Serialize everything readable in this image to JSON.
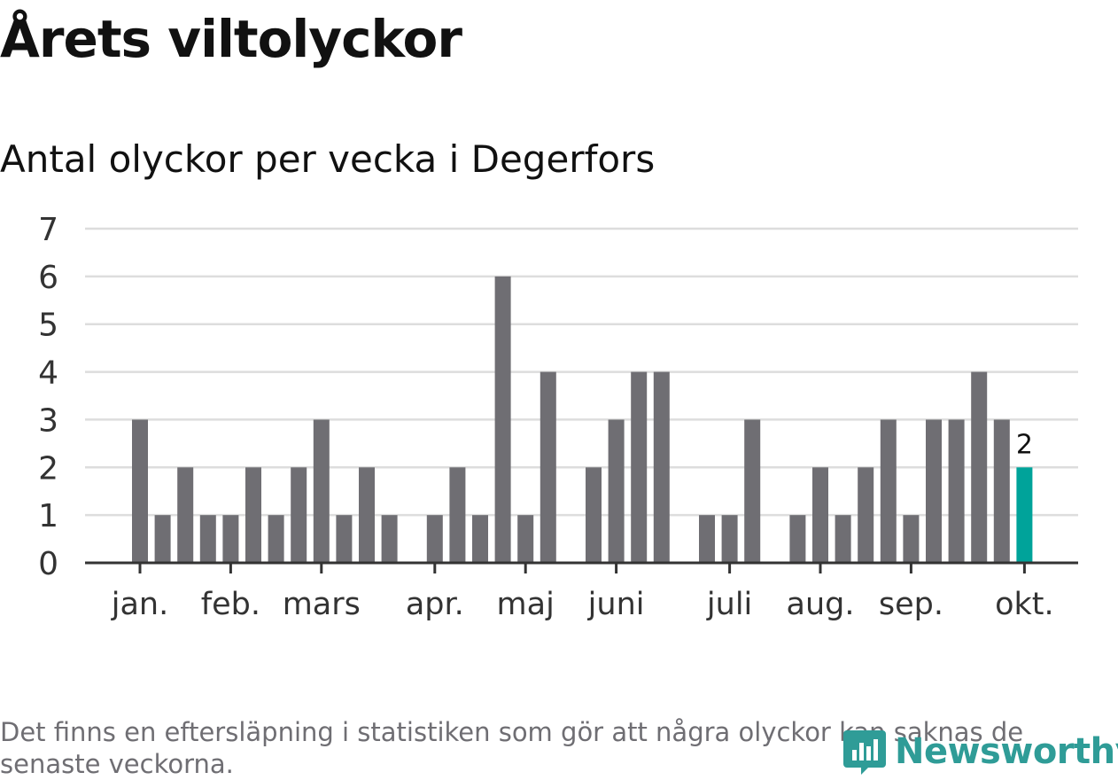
{
  "title": "Årets viltolyckor",
  "subtitle": "Antal olyckor per vecka i Degerfors",
  "note": "Det finns en eftersläpning i statistiken som gör att några olyckor kan saknas de senaste veckorna.",
  "logo": {
    "text": "Newsworthy",
    "icon": "newsworthy-logo-icon",
    "color": "#2f9c97"
  },
  "colors": {
    "bar": "#6f6e73",
    "highlight": "#00a39a",
    "grid": "#dddddd",
    "axis": "#333333"
  },
  "chart_data": {
    "type": "bar",
    "ylim": [
      0,
      7
    ],
    "yticks": [
      0,
      1,
      2,
      3,
      4,
      5,
      6,
      7
    ],
    "grid": true,
    "xtick_labels": [
      {
        "label": "jan.",
        "week": 1
      },
      {
        "label": "feb.",
        "week": 5
      },
      {
        "label": "mars",
        "week": 9
      },
      {
        "label": "apr.",
        "week": 14
      },
      {
        "label": "maj",
        "week": 18
      },
      {
        "label": "juni",
        "week": 22
      },
      {
        "label": "juli",
        "week": 27
      },
      {
        "label": "aug.",
        "week": 31
      },
      {
        "label": "sep.",
        "week": 35
      },
      {
        "label": "okt.",
        "week": 40
      }
    ],
    "weeks": [
      1,
      2,
      3,
      4,
      5,
      6,
      7,
      8,
      9,
      10,
      11,
      12,
      13,
      14,
      15,
      16,
      17,
      18,
      19,
      20,
      21,
      22,
      23,
      24,
      25,
      26,
      27,
      28,
      29,
      30,
      31,
      32,
      33,
      34,
      35,
      36,
      37,
      38,
      39,
      40
    ],
    "values": [
      3,
      1,
      2,
      1,
      1,
      2,
      1,
      2,
      3,
      1,
      2,
      1,
      0,
      1,
      2,
      1,
      6,
      1,
      4,
      0,
      2,
      3,
      4,
      4,
      0,
      1,
      1,
      3,
      0,
      1,
      2,
      1,
      2,
      3,
      1,
      3,
      3,
      4,
      3,
      2
    ],
    "highlight_index": 39,
    "data_labels": [
      {
        "index": 39,
        "text": "2"
      }
    ]
  }
}
